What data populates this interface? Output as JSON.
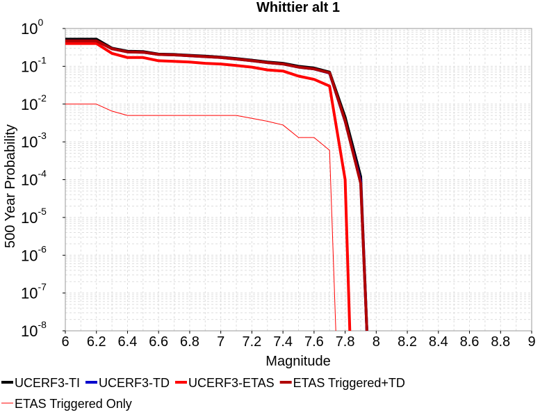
{
  "chart_data": {
    "type": "line",
    "title": "Whittier alt 1",
    "xlabel": "Magnitude",
    "ylabel": "500 Year Probability",
    "xlim": [
      6,
      9
    ],
    "ylim": [
      1e-08,
      1
    ],
    "yscale": "log",
    "grid": true,
    "legend_position": "bottom",
    "x_ticks": [
      "6",
      "6.2",
      "6.4",
      "6.6",
      "6.8",
      "7",
      "7.2",
      "7.4",
      "7.6",
      "7.8",
      "8",
      "8.2",
      "8.4",
      "8.6",
      "8.8",
      "9"
    ],
    "y_ticks": [
      {
        "base": "10",
        "exp": "0",
        "value": 1
      },
      {
        "base": "10",
        "exp": "-1",
        "value": 0.1
      },
      {
        "base": "10",
        "exp": "-2",
        "value": 0.01
      },
      {
        "base": "10",
        "exp": "-3",
        "value": 0.001
      },
      {
        "base": "10",
        "exp": "-4",
        "value": 0.0001
      },
      {
        "base": "10",
        "exp": "-5",
        "value": 1e-05
      },
      {
        "base": "10",
        "exp": "-6",
        "value": 1e-06
      },
      {
        "base": "10",
        "exp": "-7",
        "value": 1e-07
      },
      {
        "base": "10",
        "exp": "-8",
        "value": 1e-08
      }
    ],
    "series": [
      {
        "name": "UCERF3-TI",
        "color": "#000000",
        "width": 4,
        "points": [
          [
            6.0,
            0.52
          ],
          [
            6.2,
            0.52
          ],
          [
            6.3,
            0.3
          ],
          [
            6.4,
            0.25
          ],
          [
            6.5,
            0.245
          ],
          [
            6.6,
            0.21
          ],
          [
            6.7,
            0.205
          ],
          [
            6.8,
            0.195
          ],
          [
            6.9,
            0.185
          ],
          [
            7.0,
            0.175
          ],
          [
            7.1,
            0.16
          ],
          [
            7.2,
            0.145
          ],
          [
            7.3,
            0.13
          ],
          [
            7.4,
            0.12
          ],
          [
            7.5,
            0.1
          ],
          [
            7.6,
            0.09
          ],
          [
            7.7,
            0.07
          ],
          [
            7.8,
            0.0045
          ],
          [
            7.9,
            0.00012
          ],
          [
            7.94,
            1e-08
          ]
        ]
      },
      {
        "name": "UCERF3-TD",
        "color": "#0000cc",
        "width": 4,
        "points": [
          [
            6.0,
            0.47
          ],
          [
            6.2,
            0.47
          ],
          [
            6.3,
            0.29
          ],
          [
            6.4,
            0.24
          ],
          [
            6.5,
            0.235
          ],
          [
            6.6,
            0.205
          ],
          [
            6.7,
            0.2
          ],
          [
            6.8,
            0.19
          ],
          [
            6.9,
            0.18
          ],
          [
            7.0,
            0.17
          ],
          [
            7.1,
            0.155
          ],
          [
            7.2,
            0.14
          ],
          [
            7.3,
            0.125
          ],
          [
            7.4,
            0.115
          ],
          [
            7.5,
            0.095
          ],
          [
            7.6,
            0.085
          ],
          [
            7.7,
            0.066
          ],
          [
            7.8,
            0.0035
          ],
          [
            7.9,
            9e-05
          ],
          [
            7.94,
            1e-08
          ]
        ]
      },
      {
        "name": "UCERF3-ETAS",
        "color": "#ff0000",
        "width": 4,
        "points": [
          [
            6.0,
            0.4
          ],
          [
            6.2,
            0.4
          ],
          [
            6.3,
            0.22
          ],
          [
            6.4,
            0.17
          ],
          [
            6.5,
            0.17
          ],
          [
            6.6,
            0.14
          ],
          [
            6.7,
            0.135
          ],
          [
            6.8,
            0.13
          ],
          [
            6.9,
            0.12
          ],
          [
            7.0,
            0.115
          ],
          [
            7.1,
            0.105
          ],
          [
            7.2,
            0.095
          ],
          [
            7.3,
            0.08
          ],
          [
            7.4,
            0.075
          ],
          [
            7.5,
            0.055
          ],
          [
            7.6,
            0.045
          ],
          [
            7.7,
            0.03
          ],
          [
            7.8,
            0.0001
          ],
          [
            7.83,
            1e-08
          ]
        ]
      },
      {
        "name": "ETAS Triggered+TD",
        "color": "#b00000",
        "width": 4,
        "points": [
          [
            6.0,
            0.47
          ],
          [
            6.2,
            0.47
          ],
          [
            6.3,
            0.29
          ],
          [
            6.4,
            0.24
          ],
          [
            6.5,
            0.235
          ],
          [
            6.6,
            0.205
          ],
          [
            6.7,
            0.2
          ],
          [
            6.8,
            0.19
          ],
          [
            6.9,
            0.18
          ],
          [
            7.0,
            0.17
          ],
          [
            7.1,
            0.155
          ],
          [
            7.2,
            0.14
          ],
          [
            7.3,
            0.125
          ],
          [
            7.4,
            0.115
          ],
          [
            7.5,
            0.095
          ],
          [
            7.6,
            0.085
          ],
          [
            7.7,
            0.067
          ],
          [
            7.8,
            0.0036
          ],
          [
            7.9,
            8e-05
          ],
          [
            7.94,
            1e-08
          ]
        ]
      },
      {
        "name": "ETAS Triggered Only",
        "color": "#ff0000",
        "width": 1,
        "points": [
          [
            6.0,
            0.01
          ],
          [
            6.2,
            0.01
          ],
          [
            6.3,
            0.0065
          ],
          [
            6.4,
            0.005
          ],
          [
            6.5,
            0.005
          ],
          [
            6.6,
            0.005
          ],
          [
            6.7,
            0.005
          ],
          [
            6.8,
            0.005
          ],
          [
            6.9,
            0.005
          ],
          [
            7.0,
            0.005
          ],
          [
            7.1,
            0.005
          ],
          [
            7.2,
            0.0042
          ],
          [
            7.3,
            0.0035
          ],
          [
            7.4,
            0.0028
          ],
          [
            7.5,
            0.0013
          ],
          [
            7.6,
            0.0013
          ],
          [
            7.7,
            0.0006
          ],
          [
            7.74,
            1e-08
          ]
        ]
      }
    ],
    "legend": [
      {
        "label": "UCERF3-TI",
        "color": "#000000",
        "width": 4,
        "row": 0
      },
      {
        "label": "UCERF3-TD",
        "color": "#0000cc",
        "width": 4,
        "row": 0
      },
      {
        "label": "UCERF3-ETAS",
        "color": "#ff0000",
        "width": 4,
        "row": 0
      },
      {
        "label": "ETAS Triggered+TD",
        "color": "#b00000",
        "width": 4,
        "row": 0
      },
      {
        "label": "ETAS Triggered Only",
        "color": "#ff0000",
        "width": 1,
        "row": 1
      }
    ]
  }
}
